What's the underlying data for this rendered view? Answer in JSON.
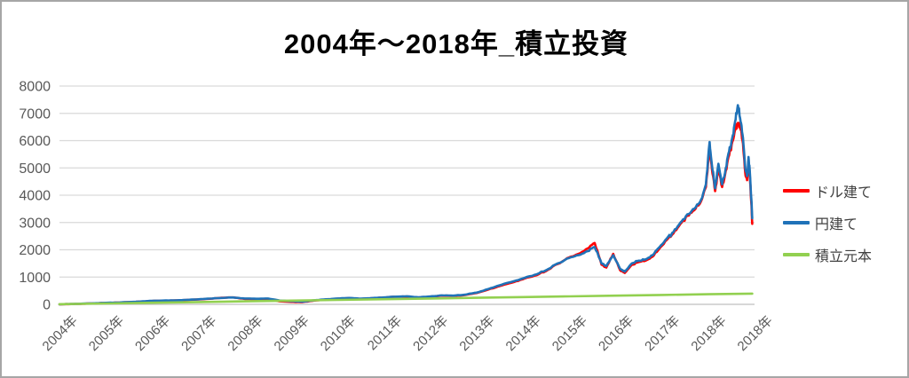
{
  "chart_data": {
    "type": "line",
    "title": "2004年～2018年_積立投資",
    "xlabel": "",
    "ylabel": "",
    "ylim": [
      0,
      8000
    ],
    "xlim_years": [
      2004,
      2019
    ],
    "grid": "horizontal",
    "legend_position": "right",
    "y_ticks": [
      "0",
      "1000",
      "2000",
      "3000",
      "4000",
      "5000",
      "6000",
      "7000",
      "8000"
    ],
    "y_tick_values": [
      0,
      1000,
      2000,
      3000,
      4000,
      5000,
      6000,
      7000,
      8000
    ],
    "x_tick_labels": [
      "2004年",
      "2005年",
      "2006年",
      "2007年",
      "2008年",
      "2009年",
      "2010年",
      "2011年",
      "2012年",
      "2013年",
      "2014年",
      "2015年",
      "2016年",
      "2017年",
      "2018年",
      "2018年"
    ],
    "colors": {
      "grid": "#d9d9d9",
      "axis": "#bfbfbf",
      "tick_text": "#595959",
      "title_text": "#000000",
      "legend_text": "#404040"
    },
    "series": [
      {
        "name": "ドル建て",
        "color": "#ff0000",
        "points": [
          [
            2004.0,
            0
          ],
          [
            2004.25,
            10
          ],
          [
            2004.5,
            22
          ],
          [
            2004.75,
            38
          ],
          [
            2005.0,
            50
          ],
          [
            2005.25,
            62
          ],
          [
            2005.5,
            80
          ],
          [
            2005.75,
            100
          ],
          [
            2006.0,
            125
          ],
          [
            2006.25,
            135
          ],
          [
            2006.5,
            142
          ],
          [
            2006.75,
            160
          ],
          [
            2007.0,
            180
          ],
          [
            2007.25,
            205
          ],
          [
            2007.5,
            240
          ],
          [
            2007.75,
            255
          ],
          [
            2008.0,
            200
          ],
          [
            2008.25,
            190
          ],
          [
            2008.5,
            200
          ],
          [
            2008.75,
            110
          ],
          [
            2009.0,
            90
          ],
          [
            2009.25,
            85
          ],
          [
            2009.5,
            140
          ],
          [
            2009.75,
            175
          ],
          [
            2010.0,
            205
          ],
          [
            2010.25,
            225
          ],
          [
            2010.5,
            200
          ],
          [
            2010.75,
            225
          ],
          [
            2011.0,
            250
          ],
          [
            2011.25,
            275
          ],
          [
            2011.5,
            285
          ],
          [
            2011.75,
            245
          ],
          [
            2012.0,
            280
          ],
          [
            2012.25,
            320
          ],
          [
            2012.5,
            310
          ],
          [
            2012.75,
            340
          ],
          [
            2013.0,
            415
          ],
          [
            2013.25,
            540
          ],
          [
            2013.5,
            670
          ],
          [
            2013.75,
            790
          ],
          [
            2014.0,
            920
          ],
          [
            2014.25,
            1050
          ],
          [
            2014.5,
            1220
          ],
          [
            2014.75,
            1480
          ],
          [
            2015.0,
            1720
          ],
          [
            2015.2,
            1850
          ],
          [
            2015.4,
            2050
          ],
          [
            2015.55,
            2250
          ],
          [
            2015.7,
            1450
          ],
          [
            2015.8,
            1350
          ],
          [
            2015.95,
            1850
          ],
          [
            2016.1,
            1250
          ],
          [
            2016.2,
            1150
          ],
          [
            2016.35,
            1450
          ],
          [
            2016.5,
            1550
          ],
          [
            2016.65,
            1600
          ],
          [
            2016.8,
            1750
          ],
          [
            2016.95,
            2050
          ],
          [
            2017.1,
            2350
          ],
          [
            2017.25,
            2600
          ],
          [
            2017.4,
            2950
          ],
          [
            2017.55,
            3250
          ],
          [
            2017.7,
            3450
          ],
          [
            2017.85,
            3800
          ],
          [
            2017.95,
            4300
          ],
          [
            2018.03,
            5750
          ],
          [
            2018.08,
            4950
          ],
          [
            2018.15,
            4150
          ],
          [
            2018.22,
            5000
          ],
          [
            2018.3,
            4300
          ],
          [
            2018.38,
            4900
          ],
          [
            2018.45,
            5450
          ],
          [
            2018.52,
            5950
          ],
          [
            2018.58,
            6400
          ],
          [
            2018.64,
            6650
          ],
          [
            2018.7,
            6400
          ],
          [
            2018.75,
            5900
          ],
          [
            2018.8,
            4800
          ],
          [
            2018.84,
            4550
          ],
          [
            2018.87,
            5250
          ],
          [
            2018.9,
            4650
          ],
          [
            2018.93,
            3750
          ],
          [
            2018.95,
            2950
          ]
        ]
      },
      {
        "name": "円建て",
        "color": "#1f72b8",
        "points": [
          [
            2004.0,
            2
          ],
          [
            2004.25,
            12
          ],
          [
            2004.5,
            25
          ],
          [
            2004.75,
            40
          ],
          [
            2005.0,
            55
          ],
          [
            2005.25,
            65
          ],
          [
            2005.5,
            85
          ],
          [
            2005.75,
            105
          ],
          [
            2006.0,
            130
          ],
          [
            2006.25,
            140
          ],
          [
            2006.5,
            145
          ],
          [
            2006.75,
            165
          ],
          [
            2007.0,
            185
          ],
          [
            2007.25,
            210
          ],
          [
            2007.5,
            235
          ],
          [
            2007.75,
            250
          ],
          [
            2008.0,
            215
          ],
          [
            2008.25,
            205
          ],
          [
            2008.5,
            215
          ],
          [
            2008.75,
            140
          ],
          [
            2009.0,
            115
          ],
          [
            2009.25,
            100
          ],
          [
            2009.5,
            150
          ],
          [
            2009.75,
            185
          ],
          [
            2010.0,
            215
          ],
          [
            2010.25,
            235
          ],
          [
            2010.5,
            210
          ],
          [
            2010.75,
            230
          ],
          [
            2011.0,
            255
          ],
          [
            2011.25,
            280
          ],
          [
            2011.5,
            295
          ],
          [
            2011.75,
            260
          ],
          [
            2012.0,
            290
          ],
          [
            2012.25,
            330
          ],
          [
            2012.5,
            320
          ],
          [
            2012.75,
            355
          ],
          [
            2013.0,
            430
          ],
          [
            2013.25,
            560
          ],
          [
            2013.5,
            700
          ],
          [
            2013.75,
            820
          ],
          [
            2014.0,
            950
          ],
          [
            2014.25,
            1080
          ],
          [
            2014.5,
            1250
          ],
          [
            2014.75,
            1500
          ],
          [
            2015.0,
            1700
          ],
          [
            2015.2,
            1800
          ],
          [
            2015.4,
            1950
          ],
          [
            2015.55,
            2100
          ],
          [
            2015.7,
            1500
          ],
          [
            2015.8,
            1400
          ],
          [
            2015.95,
            1800
          ],
          [
            2016.1,
            1300
          ],
          [
            2016.2,
            1200
          ],
          [
            2016.35,
            1500
          ],
          [
            2016.5,
            1600
          ],
          [
            2016.65,
            1650
          ],
          [
            2016.8,
            1800
          ],
          [
            2016.95,
            2100
          ],
          [
            2017.1,
            2400
          ],
          [
            2017.25,
            2650
          ],
          [
            2017.4,
            3000
          ],
          [
            2017.55,
            3300
          ],
          [
            2017.7,
            3500
          ],
          [
            2017.85,
            3850
          ],
          [
            2017.95,
            4400
          ],
          [
            2018.03,
            5950
          ],
          [
            2018.08,
            5100
          ],
          [
            2018.15,
            4250
          ],
          [
            2018.22,
            5150
          ],
          [
            2018.3,
            4400
          ],
          [
            2018.38,
            5000
          ],
          [
            2018.45,
            5600
          ],
          [
            2018.52,
            6100
          ],
          [
            2018.58,
            6700
          ],
          [
            2018.64,
            7300
          ],
          [
            2018.7,
            6700
          ],
          [
            2018.75,
            6100
          ],
          [
            2018.8,
            5000
          ],
          [
            2018.84,
            4700
          ],
          [
            2018.87,
            5400
          ],
          [
            2018.9,
            4800
          ],
          [
            2018.93,
            3900
          ],
          [
            2018.95,
            3150
          ]
        ]
      },
      {
        "name": "積立元本",
        "color": "#92d050",
        "points": [
          [
            2004.0,
            8
          ],
          [
            2005.0,
            34
          ],
          [
            2006.0,
            60
          ],
          [
            2007.0,
            86
          ],
          [
            2008.0,
            112
          ],
          [
            2009.0,
            138
          ],
          [
            2010.0,
            164
          ],
          [
            2011.0,
            190
          ],
          [
            2012.0,
            216
          ],
          [
            2013.0,
            242
          ],
          [
            2014.0,
            268
          ],
          [
            2015.0,
            294
          ],
          [
            2016.0,
            320
          ],
          [
            2017.0,
            346
          ],
          [
            2018.0,
            372
          ],
          [
            2018.95,
            395
          ]
        ]
      }
    ]
  }
}
